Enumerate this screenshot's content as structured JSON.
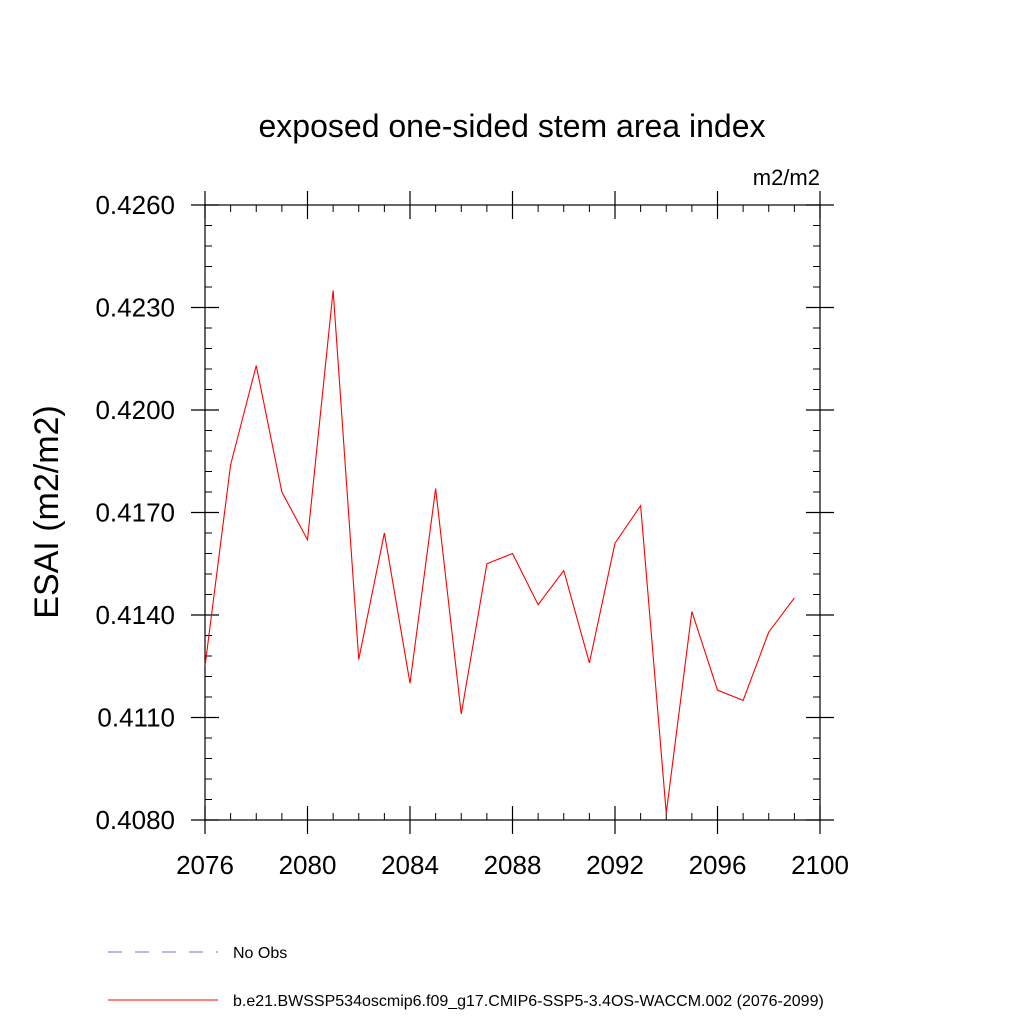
{
  "chart_data": {
    "type": "line",
    "title": "exposed one-sided stem area index",
    "units": "m2/m2",
    "xlabel": "",
    "ylabel": "ESAI  (m2/m2)",
    "xlim": [
      2076,
      2100
    ],
    "ylim": [
      0.408,
      0.426
    ],
    "xticks": [
      2076,
      2080,
      2084,
      2088,
      2092,
      2096,
      2100
    ],
    "xtick_labels": [
      "2076",
      "2080",
      "2084",
      "2088",
      "2092",
      "2096",
      "2100"
    ],
    "yticks": [
      0.408,
      0.411,
      0.414,
      0.417,
      0.42,
      0.423,
      0.426
    ],
    "ytick_labels": [
      "0.4080",
      "0.4110",
      "0.4140",
      "0.4170",
      "0.4200",
      "0.4230",
      "0.4260"
    ],
    "series": [
      {
        "name": "b.e21.BWSSP534oscmip6.f09_g17.CMIP6-SSP5-3.4OS-WACCM.002 (2076-2099)",
        "color": "#ff0000",
        "style": "solid",
        "x": [
          2076,
          2077,
          2078,
          2079,
          2080,
          2081,
          2082,
          2083,
          2084,
          2085,
          2086,
          2087,
          2088,
          2089,
          2090,
          2091,
          2092,
          2093,
          2094,
          2095,
          2096,
          2097,
          2098,
          2099
        ],
        "values": [
          0.4125,
          0.4184,
          0.4213,
          0.4176,
          0.4162,
          0.4235,
          0.4127,
          0.4164,
          0.412,
          0.4177,
          0.4111,
          0.4155,
          0.4158,
          0.4143,
          0.4153,
          0.4126,
          0.4161,
          0.4172,
          0.4082,
          0.4141,
          0.4118,
          0.4115,
          0.4135,
          0.4145
        ]
      }
    ],
    "legend": [
      {
        "label": "No Obs",
        "color": "#7a6fd0",
        "style": "dashed"
      },
      {
        "label": "b.e21.BWSSP534oscmip6.f09_g17.CMIP6-SSP5-3.4OS-WACCM.002 (2076-2099)",
        "color": "#ff0000",
        "style": "solid"
      }
    ],
    "legend_position": "bottom"
  }
}
